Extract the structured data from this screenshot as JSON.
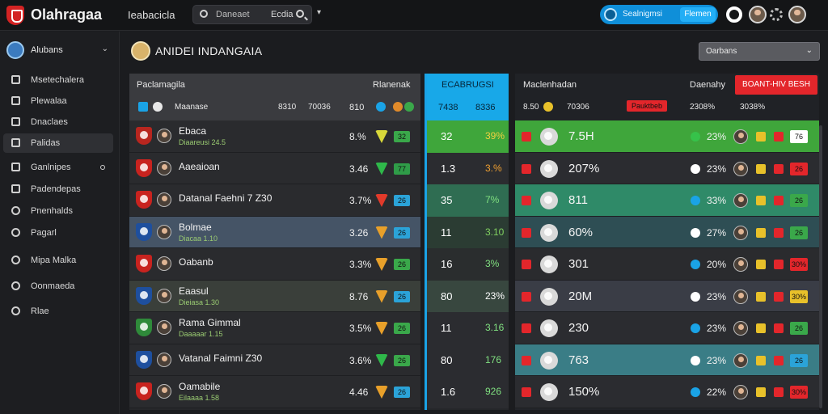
{
  "app": {
    "brand": "Olahragaa",
    "top_nav": "Ieabacicla"
  },
  "search": {
    "placeholder": "Daneaet",
    "value": "Ecdia"
  },
  "status_pill": {
    "text": "Sealnigmsi",
    "button": "Flemen"
  },
  "sidebar": {
    "user": "Alubans",
    "items": [
      {
        "label": "Msetechalera",
        "icon": "grid-icon"
      },
      {
        "label": "Plewalaa",
        "icon": "table-icon"
      },
      {
        "label": "Dnaclaes",
        "icon": "pen-icon"
      },
      {
        "label": "Palidas",
        "icon": "home-icon",
        "active": true
      },
      {
        "label": "Ganlnipes",
        "icon": "house-icon",
        "dot": true
      },
      {
        "label": "Padendepas",
        "icon": "calendar-icon"
      },
      {
        "label": "Pnenhalds",
        "icon": "clipboard-icon"
      },
      {
        "label": "Pagarl",
        "icon": "globe-icon"
      },
      {
        "label": "Mipa Malka",
        "icon": "clock-icon"
      },
      {
        "label": "Oonmaeda",
        "icon": "info-icon"
      },
      {
        "label": "Rlae",
        "icon": "dollar-icon"
      }
    ]
  },
  "page": {
    "title": "ANIDEI INDANGAIA",
    "sort": "Oarbans"
  },
  "panel1": {
    "header": {
      "title": "Paclamagila",
      "right": "Rlanenak",
      "sub": "Maanase",
      "n1": "8310",
      "n2": "70036",
      "n3": "810"
    },
    "rows": [
      {
        "name": "Ebaca",
        "sub": "Diaareusi 24.5",
        "val": "8.%",
        "badge": "32",
        "tri": "#d8d83a",
        "sqc": "#3aa84a",
        "crest": "#b8261f"
      },
      {
        "name": "Aaeaioan",
        "sub": "",
        "val": "3.46",
        "badge": "77",
        "tri": "#2fb84a",
        "sqc": "#2f9c48",
        "crest": "#c8231f"
      },
      {
        "name": "Datanal Faehni 7 Z30",
        "sub": "",
        "val": "3.7%",
        "badge": "26",
        "tri": "#e23a2a",
        "sqc": "#2ba3d8",
        "crest": "#c8231f"
      },
      {
        "name": "Bolmae",
        "sub": "Diacaa 1.10",
        "val": "3.26",
        "badge": "26",
        "tri": "#e8a02a",
        "sqc": "#2ba3d8",
        "crest": "#1e4f9e"
      },
      {
        "name": "Oabanb",
        "sub": "",
        "val": "3.3%",
        "badge": "26",
        "tri": "#e8a02a",
        "sqc": "#3aa84a",
        "crest": "#c8231f"
      },
      {
        "name": "Eaasul",
        "sub": "Dieiasa 1.30",
        "val": "8.76",
        "badge": "26",
        "tri": "#e8a02a",
        "sqc": "#2ba3d8",
        "crest": "#1e4f9e"
      },
      {
        "name": "Rama Gimmal",
        "sub": "Daaaaar 1.15",
        "val": "3.5%",
        "badge": "26",
        "tri": "#e8a02a",
        "sqc": "#3aa84a",
        "crest": "#2f8a3a"
      },
      {
        "name": "Vatanal Faimni Z30",
        "sub": "",
        "val": "3.6%",
        "badge": "26",
        "tri": "#2fb84a",
        "sqc": "#3aa84a",
        "crest": "#1e4f9e"
      },
      {
        "name": "Oamabile",
        "sub": "Eilaaaa 1.58",
        "val": "4.46",
        "badge": "26",
        "tri": "#e8a02a",
        "sqc": "#2ba3d8",
        "crest": "#c8231f"
      }
    ]
  },
  "panel2": {
    "header": {
      "title": "ECABRUGSI",
      "n1": "7438",
      "n2": "8336"
    },
    "rows": [
      {
        "a": "32",
        "b": "39%"
      },
      {
        "a": "1.3",
        "b": "3.%"
      },
      {
        "a": "35",
        "b": "7%"
      },
      {
        "a": "11",
        "b": "3.10"
      },
      {
        "a": "16",
        "b": "3%"
      },
      {
        "a": "80",
        "b": "23%"
      },
      {
        "a": "11",
        "b": "3.16"
      },
      {
        "a": "80",
        "b": "176"
      },
      {
        "a": "1.6",
        "b": "926"
      }
    ]
  },
  "panel3": {
    "header": {
      "title": "Maclenhadan",
      "right": "Daenahy",
      "button": "BOANT-HIV BESH",
      "n1": "8.50",
      "n2": "70306",
      "tag": "Pauktbeb",
      "n3": "2308%",
      "n4": "3038%"
    },
    "rows": [
      {
        "val": "7.5H",
        "pct": "23%",
        "end": "76"
      },
      {
        "val": "207%",
        "pct": "23%",
        "end": "26"
      },
      {
        "val": "811",
        "pct": "33%",
        "end": "26"
      },
      {
        "val": "60%",
        "pct": "27%",
        "end": "26"
      },
      {
        "val": "301",
        "pct": "20%",
        "end": "30%"
      },
      {
        "val": "20M",
        "pct": "23%",
        "end": "30%"
      },
      {
        "val": "230",
        "pct": "23%",
        "end": "26"
      },
      {
        "val": "763",
        "pct": "23%",
        "end": "26"
      },
      {
        "val": "150%",
        "pct": "22%",
        "end": "30%"
      }
    ]
  },
  "colors": {
    "accent_blue": "#1aa3e6",
    "accent_red": "#e3262b",
    "green_row": "#3fa63b"
  }
}
